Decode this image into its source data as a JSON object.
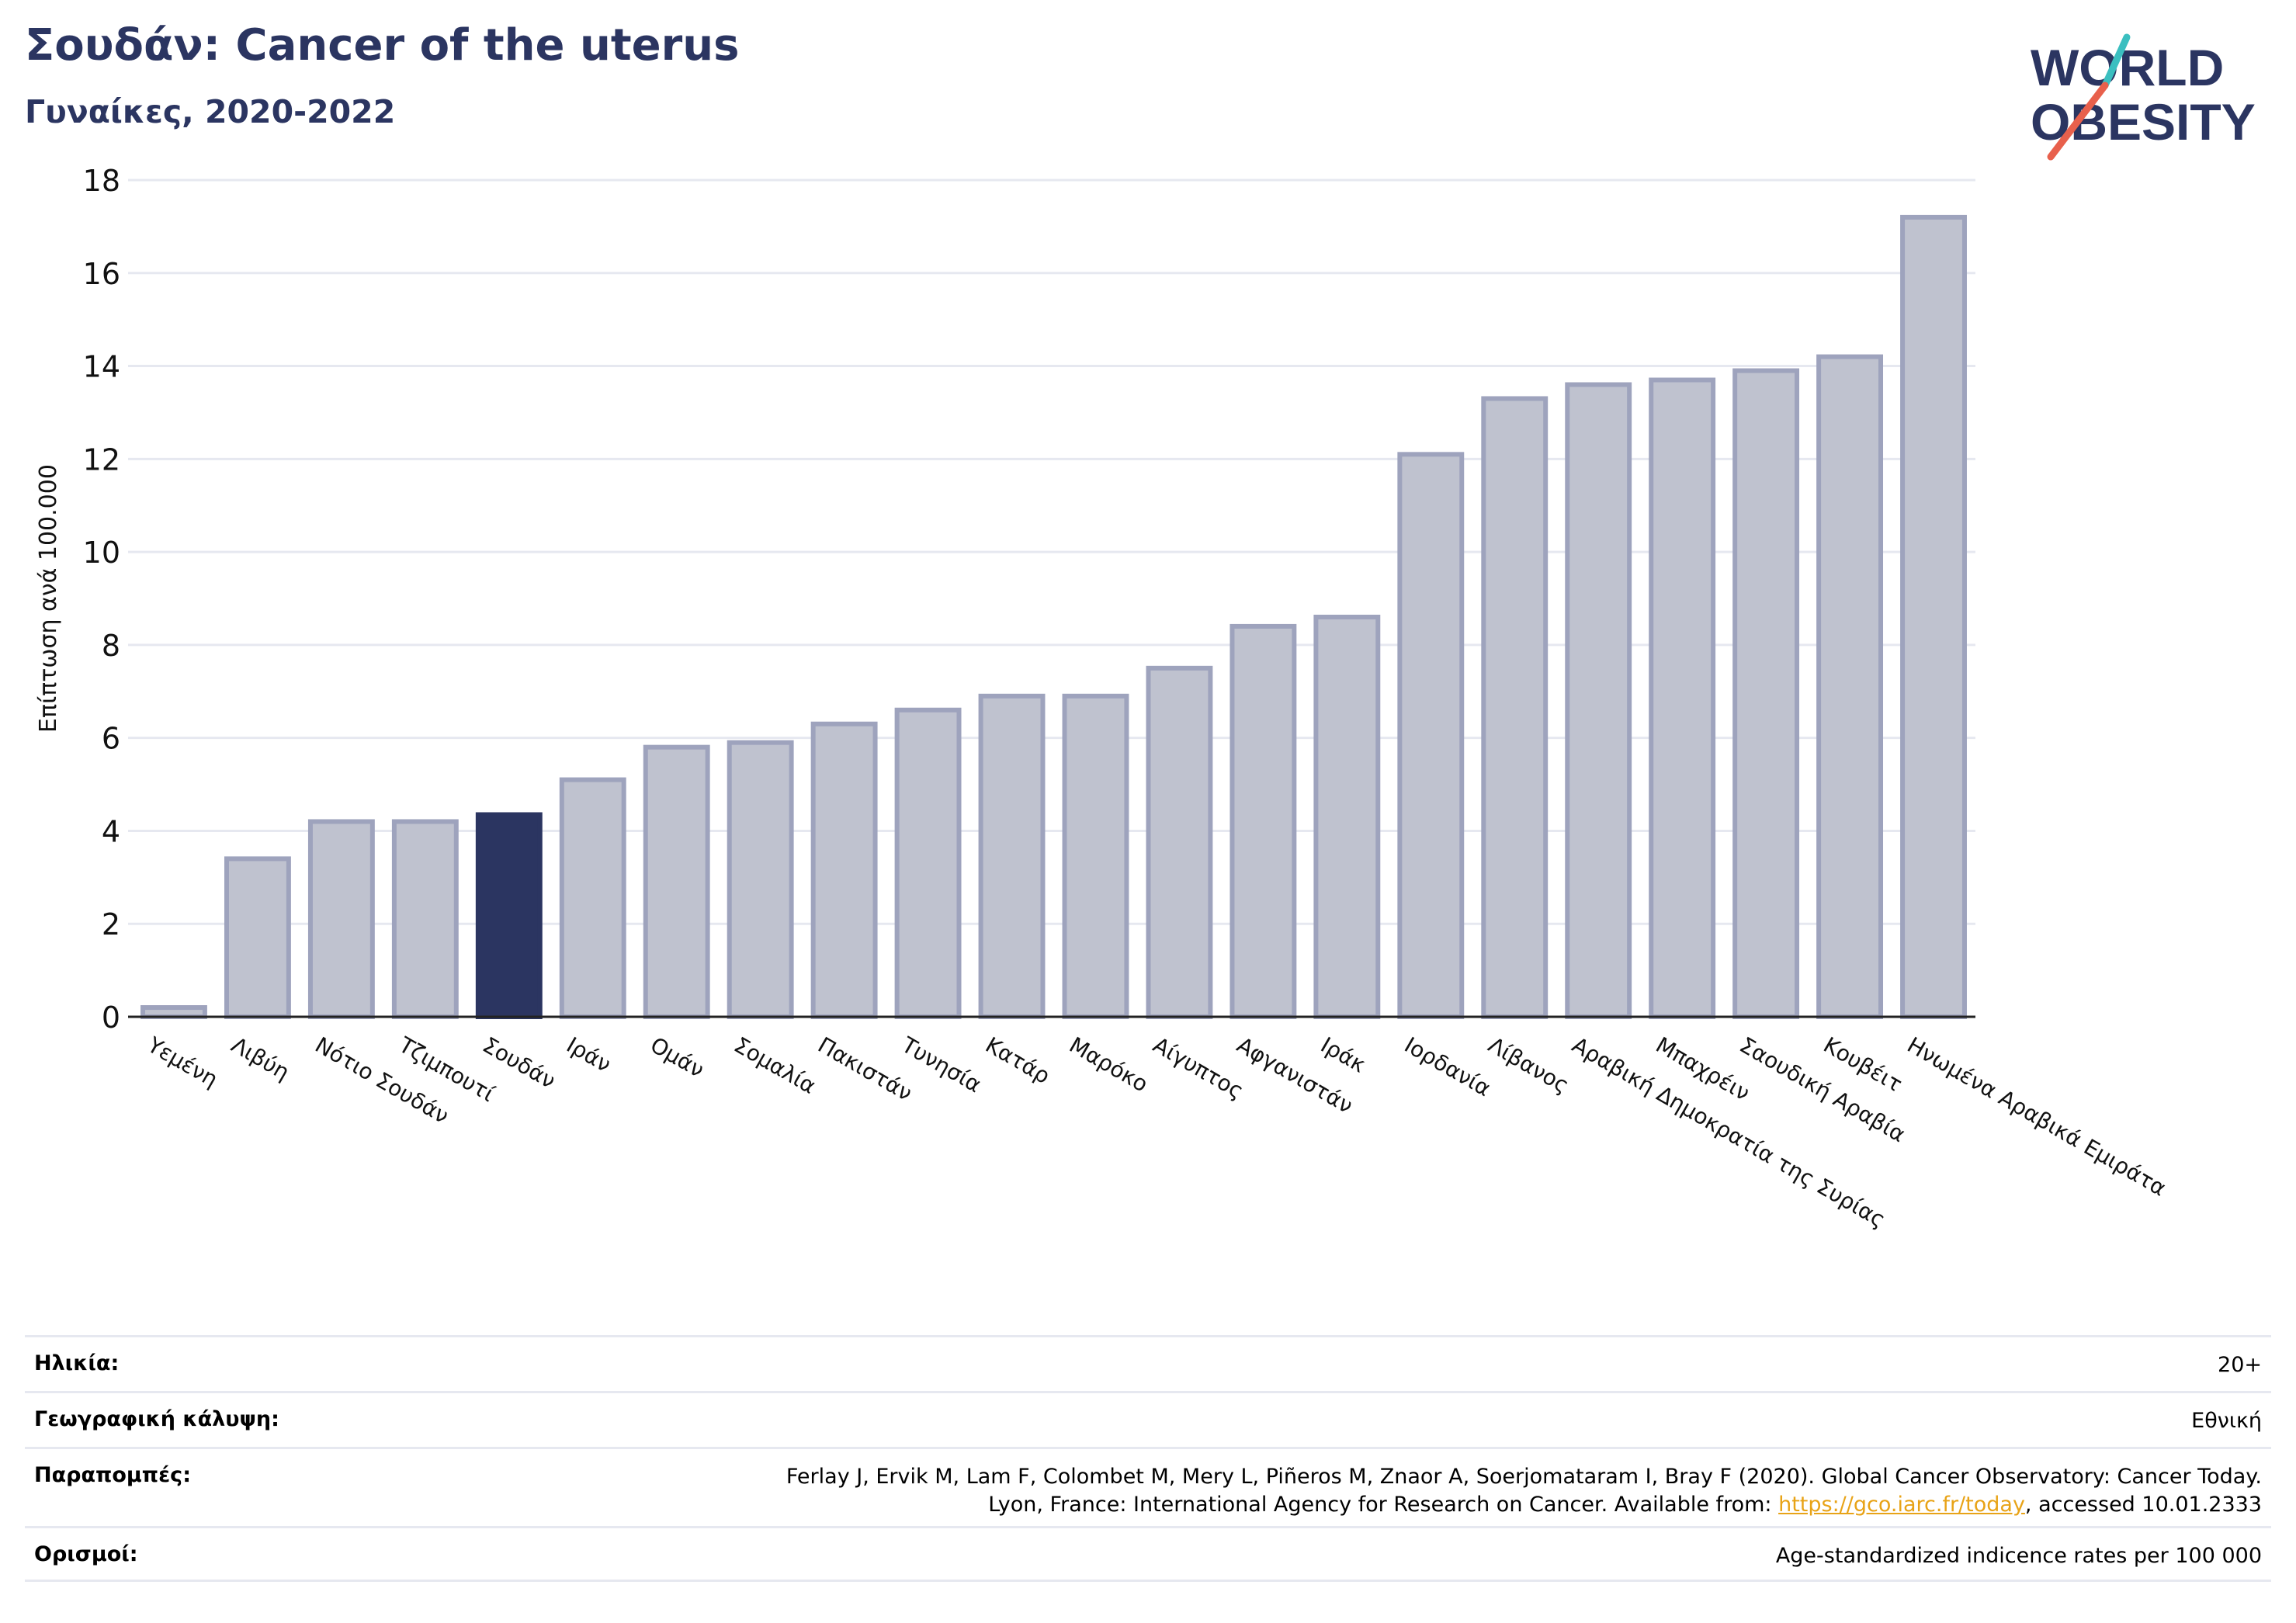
{
  "header": {
    "title": "Σουδάν: Cancer of the uterus",
    "subtitle": "Γυναίκες, 2020-2022"
  },
  "logo": {
    "line1": "WORLD",
    "line2": "OBESITY",
    "colors": {
      "text": "#2b3561",
      "slash_teal": "#3bbfc0",
      "slash_red": "#e8604c"
    }
  },
  "chart_data": {
    "type": "bar",
    "ylabel": "Επίπτωση ανά 100.000",
    "ylim": [
      0,
      18
    ],
    "yticks": [
      0,
      2,
      4,
      6,
      8,
      10,
      12,
      14,
      16,
      18
    ],
    "grid": true,
    "highlight": "Σουδάν",
    "colors": {
      "bar": "#bfc2cf",
      "bar_border": "#9ea3bd",
      "highlight": "#2b3561",
      "grid": "#e6e8f0"
    },
    "categories": [
      "Υεμένη",
      "Λιβύη",
      "Νότιο Σουδάν",
      "Τζιμπουτί",
      "Σουδάν",
      "Ιράν",
      "Ομάν",
      "Σομαλία",
      "Πακιστάν",
      "Τυνησία",
      "Κατάρ",
      "Μαρόκο",
      "Αίγυπτος",
      "Αφγανιστάν",
      "Ιράκ",
      "Ιορδανία",
      "Λίβανος",
      "Αραβική Δημοκρατία της Συρίας",
      "Μπαχρέιν",
      "Σαουδική Αραβία",
      "Κουβέιτ",
      "Ηνωμένα Αραβικά Εμιράτα"
    ],
    "values": [
      0.2,
      3.4,
      4.2,
      4.2,
      4.35,
      5.1,
      5.8,
      5.9,
      6.3,
      6.6,
      6.9,
      6.9,
      7.5,
      8.4,
      8.6,
      12.1,
      13.3,
      13.6,
      13.7,
      13.9,
      14.2,
      17.2
    ]
  },
  "meta": {
    "age_label": "Ηλικία:",
    "age_value": "20+",
    "coverage_label": "Γεωγραφική κάλυψη:",
    "coverage_value": "Εθνική",
    "refs_label": "Παραπομπές:",
    "refs_line1": "Ferlay J, Ervik M, Lam F, Colombet M, Mery L, Piñeros M, Znaor A, Soerjomataram I, Bray F (2020). Global Cancer Observatory: Cancer Today.",
    "refs_line2_pre": "Lyon, France: International Agency for Research on Cancer. Available from: ",
    "refs_link": "https://gco.iarc.fr/today",
    "refs_line2_post": ", accessed 10.01.2333",
    "defs_label": "Ορισμοί:",
    "defs_value": "Age-standardized indicence rates per 100 000"
  }
}
